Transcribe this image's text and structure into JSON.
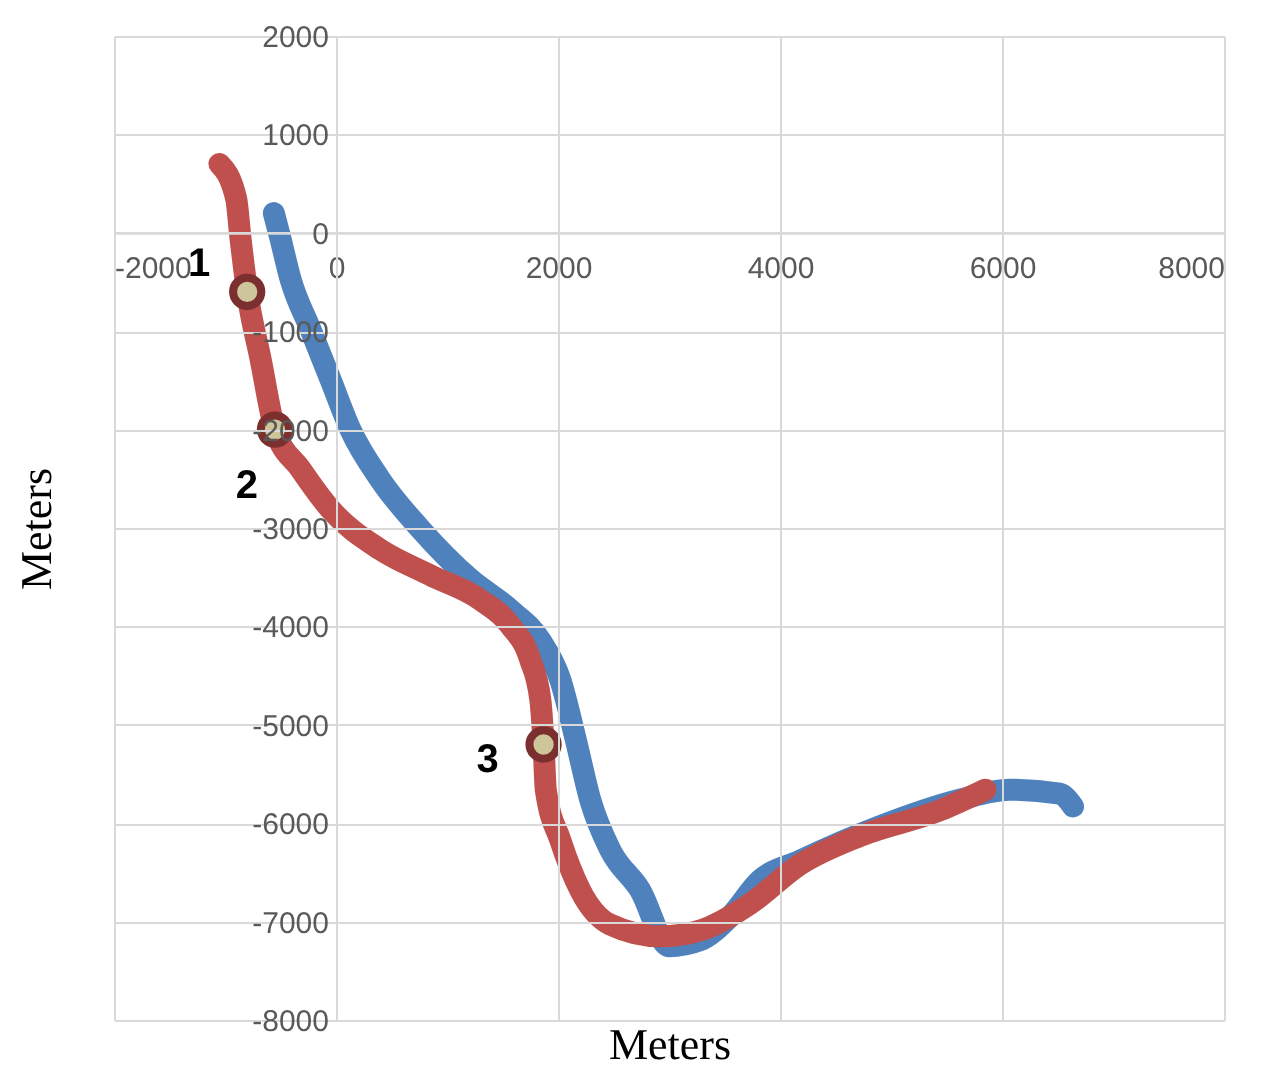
{
  "chart_data": {
    "type": "line",
    "xlabel": "Meters",
    "ylabel": "Meters",
    "xlim": [
      -2000,
      8000
    ],
    "xticks": [
      -2000,
      0,
      2000,
      4000,
      6000,
      8000
    ],
    "ylim": [
      -8000,
      2000
    ],
    "yticks": [
      -8000,
      -7000,
      -6000,
      -5000,
      -4000,
      -3000,
      -2000,
      -1000,
      0,
      1000,
      2000
    ],
    "grid": true,
    "series": [
      {
        "color": "#4f81bd",
        "x": [
          -560,
          -500,
          -410,
          -230,
          -50,
          130,
          400,
          760,
          1210,
          1570,
          1840,
          2020,
          2160,
          2290,
          2470,
          2740,
          3000,
          3280,
          3550,
          3820,
          4180,
          4900,
          5620,
          6070,
          6520,
          6640
        ],
        "values": [
          200,
          -60,
          -470,
          -980,
          -1490,
          -2000,
          -2510,
          -3010,
          -3520,
          -3830,
          -4140,
          -4540,
          -5150,
          -5760,
          -6270,
          -6680,
          -7250,
          -7190,
          -6950,
          -6580,
          -6380,
          -6030,
          -5760,
          -5660,
          -5700,
          -5830
        ]
      },
      {
        "color": "#c0504d",
        "x": [
          -1050,
          -900,
          -860,
          -800,
          -680,
          -550,
          -320,
          -50,
          400,
          850,
          1300,
          1570,
          1750,
          1840,
          1870,
          1890,
          2020,
          2200,
          2470,
          2920,
          3280,
          3730,
          4180,
          4720,
          5440,
          5850
        ],
        "values": [
          700,
          350,
          -60,
          -600,
          -1280,
          -2000,
          -2400,
          -2810,
          -3220,
          -3480,
          -3730,
          -3990,
          -4340,
          -4740,
          -5200,
          -5660,
          -6170,
          -6680,
          -7030,
          -7150,
          -7090,
          -6820,
          -6420,
          -6130,
          -5870,
          -5660
        ]
      }
    ],
    "annotations": [
      {
        "text": "1",
        "x": -800,
        "y": -600
      },
      {
        "text": "2",
        "x": -550,
        "y": -2000
      },
      {
        "text": "3",
        "x": 1870,
        "y": -5200
      }
    ]
  }
}
